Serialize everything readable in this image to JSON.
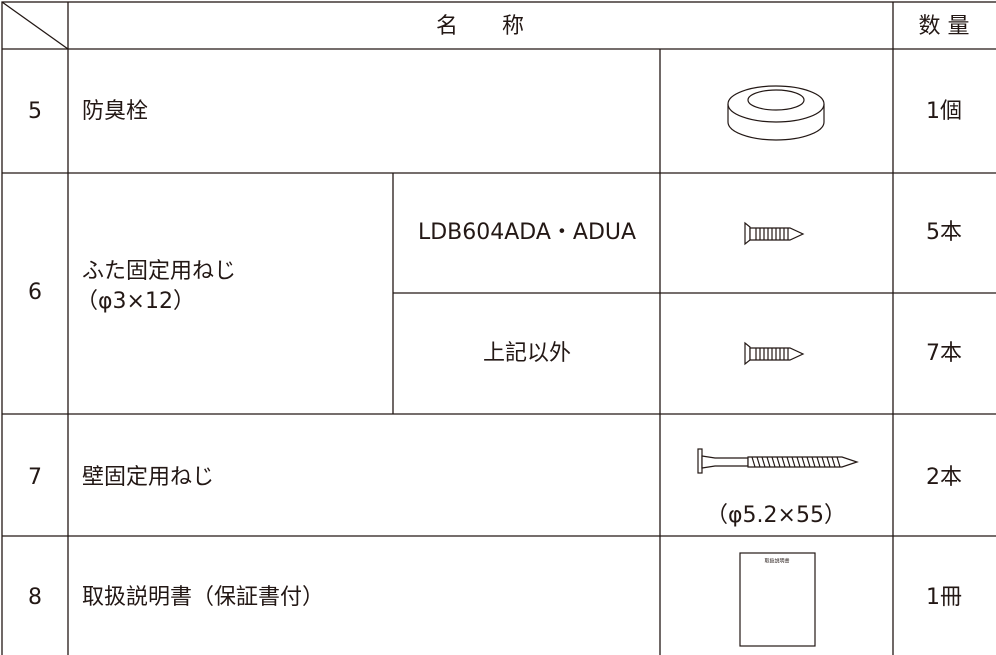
{
  "header": {
    "name": "名　　称",
    "quantity": "数 量"
  },
  "rows": [
    {
      "number": "5",
      "name": "防臭栓",
      "quantity": "1個"
    },
    {
      "number": "6",
      "name": [
        "ふた固定用ねじ",
        "（φ3×12）"
      ],
      "variants": [
        {
          "model": "LDB604ADA・ADUA",
          "quantity": "5本"
        },
        {
          "model": "上記以外",
          "quantity": "7本"
        }
      ]
    },
    {
      "number": "7",
      "name": "壁固定用ねじ",
      "size": "（φ5.2×55）",
      "quantity": "2本"
    },
    {
      "number": "8",
      "name": "取扱説明書（保証書付）",
      "quantity": "1冊",
      "manual_label": "取扱説明書"
    }
  ]
}
